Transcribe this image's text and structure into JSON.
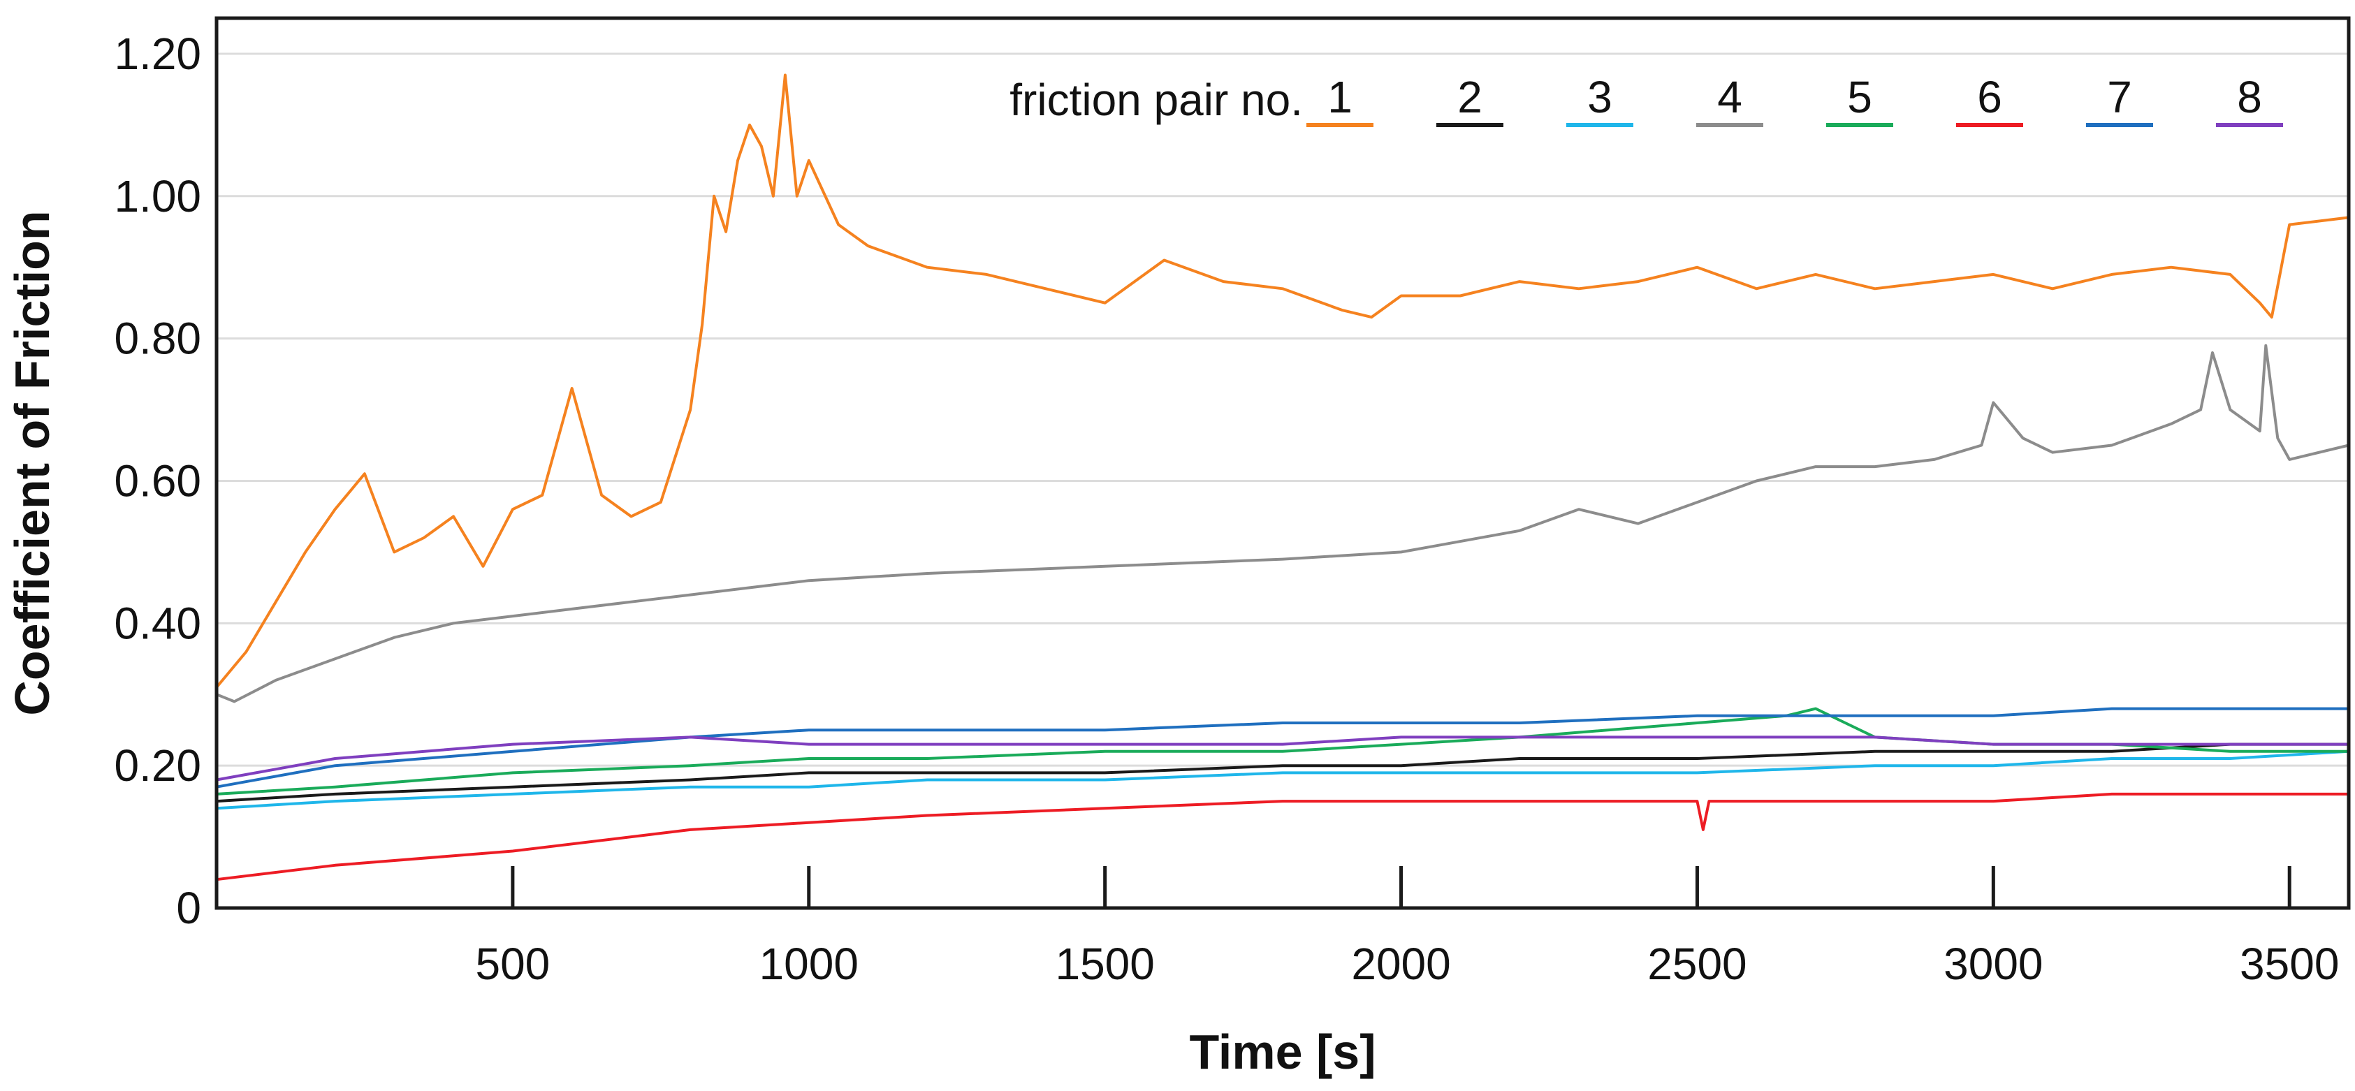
{
  "chart_data": {
    "type": "line",
    "title": "",
    "xlabel": "Time [s]",
    "ylabel": "Coefficient of Friction",
    "xlim": [
      0,
      3600
    ],
    "ylim": [
      0,
      1.25
    ],
    "x_ticks": [
      500,
      1000,
      1500,
      2000,
      2500,
      3000,
      3500
    ],
    "x_tick_labels": [
      "500",
      "1000",
      "1500",
      "2000",
      "2500",
      "3000",
      "3500"
    ],
    "y_ticks": [
      0,
      0.2,
      0.4,
      0.6,
      0.8,
      1.0,
      1.2
    ],
    "y_tick_labels": [
      "0",
      "0.20",
      "0.40",
      "0.60",
      "0.80",
      "1.00",
      "1.20"
    ],
    "grid": "horizontal",
    "legend_title": "friction pair no.",
    "legend_position": "top-right",
    "series": [
      {
        "name": "1",
        "color": "#f5821f",
        "x": [
          0,
          50,
          100,
          150,
          200,
          250,
          300,
          350,
          400,
          450,
          500,
          550,
          600,
          650,
          700,
          750,
          800,
          820,
          840,
          860,
          880,
          900,
          920,
          940,
          960,
          980,
          1000,
          1050,
          1100,
          1200,
          1300,
          1400,
          1500,
          1600,
          1700,
          1800,
          1900,
          1950,
          2000,
          2100,
          2200,
          2300,
          2400,
          2500,
          2600,
          2700,
          2800,
          2900,
          3000,
          3100,
          3200,
          3300,
          3400,
          3450,
          3470,
          3500,
          3600
        ],
        "y": [
          0.31,
          0.36,
          0.43,
          0.5,
          0.56,
          0.61,
          0.5,
          0.52,
          0.55,
          0.48,
          0.56,
          0.58,
          0.73,
          0.58,
          0.55,
          0.57,
          0.7,
          0.82,
          1.0,
          0.95,
          1.05,
          1.1,
          1.07,
          1.0,
          1.17,
          1.0,
          1.05,
          0.96,
          0.93,
          0.9,
          0.89,
          0.87,
          0.85,
          0.91,
          0.88,
          0.87,
          0.84,
          0.83,
          0.86,
          0.86,
          0.88,
          0.87,
          0.88,
          0.9,
          0.87,
          0.89,
          0.87,
          0.88,
          0.89,
          0.87,
          0.89,
          0.9,
          0.89,
          0.85,
          0.83,
          0.96,
          0.97
        ]
      },
      {
        "name": "2",
        "color": "#1a1a1a",
        "x": [
          0,
          200,
          500,
          800,
          1000,
          1200,
          1500,
          1800,
          2000,
          2200,
          2500,
          2800,
          3000,
          3200,
          3400,
          3600
        ],
        "y": [
          0.15,
          0.16,
          0.17,
          0.18,
          0.19,
          0.19,
          0.19,
          0.2,
          0.2,
          0.21,
          0.21,
          0.22,
          0.22,
          0.22,
          0.23,
          0.23
        ]
      },
      {
        "name": "3",
        "color": "#1fb6ea",
        "x": [
          0,
          200,
          500,
          800,
          1000,
          1200,
          1500,
          1800,
          2000,
          2200,
          2500,
          2800,
          3000,
          3200,
          3400,
          3600
        ],
        "y": [
          0.14,
          0.15,
          0.16,
          0.17,
          0.17,
          0.18,
          0.18,
          0.19,
          0.19,
          0.19,
          0.19,
          0.2,
          0.2,
          0.21,
          0.21,
          0.22
        ]
      },
      {
        "name": "4",
        "color": "#8c8c8c",
        "x": [
          0,
          30,
          100,
          200,
          300,
          400,
          500,
          600,
          700,
          800,
          900,
          1000,
          1200,
          1500,
          1800,
          2000,
          2200,
          2300,
          2400,
          2500,
          2600,
          2700,
          2800,
          2900,
          2980,
          3000,
          3050,
          3100,
          3200,
          3300,
          3350,
          3370,
          3400,
          3450,
          3460,
          3480,
          3500,
          3600
        ],
        "y": [
          0.3,
          0.29,
          0.32,
          0.35,
          0.38,
          0.4,
          0.41,
          0.42,
          0.43,
          0.44,
          0.45,
          0.46,
          0.47,
          0.48,
          0.49,
          0.5,
          0.53,
          0.56,
          0.54,
          0.57,
          0.6,
          0.62,
          0.62,
          0.63,
          0.65,
          0.71,
          0.66,
          0.64,
          0.65,
          0.68,
          0.7,
          0.78,
          0.7,
          0.67,
          0.79,
          0.66,
          0.63,
          0.65
        ]
      },
      {
        "name": "5",
        "color": "#1aab5a",
        "x": [
          0,
          200,
          500,
          800,
          1000,
          1200,
          1500,
          1800,
          2000,
          2200,
          2500,
          2650,
          2700,
          2750,
          2800,
          3000,
          3200,
          3400,
          3600
        ],
        "y": [
          0.16,
          0.17,
          0.19,
          0.2,
          0.21,
          0.21,
          0.22,
          0.22,
          0.23,
          0.24,
          0.26,
          0.27,
          0.28,
          0.26,
          0.24,
          0.23,
          0.23,
          0.22,
          0.22
        ]
      },
      {
        "name": "6",
        "color": "#ed1c24",
        "x": [
          0,
          200,
          500,
          800,
          1000,
          1200,
          1500,
          1800,
          2000,
          2200,
          2400,
          2500,
          2510,
          2520,
          2600,
          2800,
          3000,
          3200,
          3400,
          3600
        ],
        "y": [
          0.04,
          0.06,
          0.08,
          0.11,
          0.12,
          0.13,
          0.14,
          0.15,
          0.15,
          0.15,
          0.15,
          0.15,
          0.11,
          0.15,
          0.15,
          0.15,
          0.15,
          0.16,
          0.16,
          0.16
        ]
      },
      {
        "name": "7",
        "color": "#1f6fbf",
        "x": [
          0,
          200,
          500,
          800,
          1000,
          1200,
          1500,
          1800,
          2000,
          2200,
          2500,
          2800,
          3000,
          3200,
          3400,
          3600
        ],
        "y": [
          0.17,
          0.2,
          0.22,
          0.24,
          0.25,
          0.25,
          0.25,
          0.26,
          0.26,
          0.26,
          0.27,
          0.27,
          0.27,
          0.28,
          0.28,
          0.28
        ]
      },
      {
        "name": "8",
        "color": "#7f3fbf",
        "x": [
          0,
          200,
          500,
          800,
          1000,
          1200,
          1500,
          1800,
          2000,
          2200,
          2500,
          2800,
          3000,
          3200,
          3400,
          3600
        ],
        "y": [
          0.18,
          0.21,
          0.23,
          0.24,
          0.23,
          0.23,
          0.23,
          0.23,
          0.24,
          0.24,
          0.24,
          0.24,
          0.23,
          0.23,
          0.23,
          0.23
        ]
      }
    ]
  }
}
